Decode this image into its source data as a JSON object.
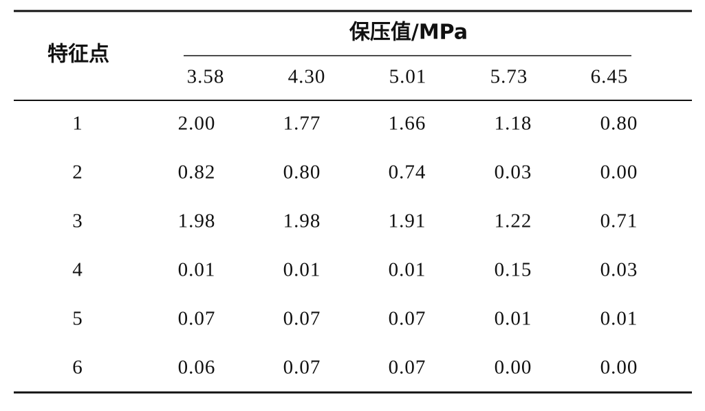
{
  "table": {
    "header": {
      "row_label": "特征点",
      "group": "保压值/MPa",
      "columns": [
        "3.58",
        "4.30",
        "5.01",
        "5.73",
        "6.45"
      ]
    },
    "rows": [
      [
        "1",
        "2.00",
        "1.77",
        "1.66",
        "1.18",
        "0.80"
      ],
      [
        "2",
        "0.82",
        "0.80",
        "0.74",
        "0.03",
        "0.00"
      ],
      [
        "3",
        "1.98",
        "1.98",
        "1.91",
        "1.22",
        "0.71"
      ],
      [
        "4",
        "0.01",
        "0.01",
        "0.01",
        "0.15",
        "0.03"
      ],
      [
        "5",
        "0.07",
        "0.07",
        "0.07",
        "0.01",
        "0.01"
      ],
      [
        "6",
        "0.06",
        "0.07",
        "0.07",
        "0.00",
        "0.00"
      ]
    ]
  }
}
